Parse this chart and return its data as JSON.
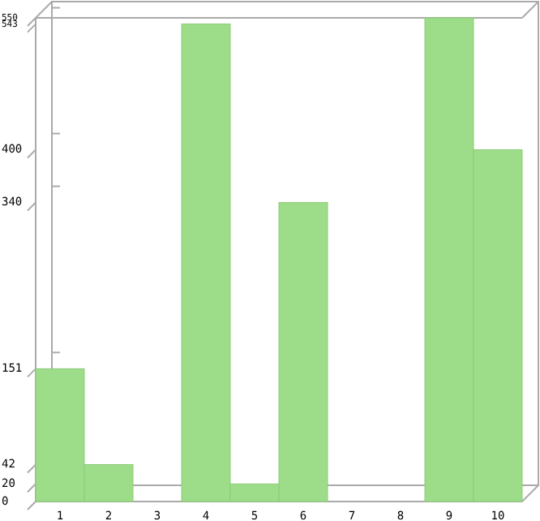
{
  "chart_data": {
    "type": "bar",
    "categories": [
      "1",
      "2",
      "3",
      "4",
      "5",
      "6",
      "7",
      "8",
      "9",
      "10"
    ],
    "values": [
      151,
      42,
      0,
      543,
      20,
      340,
      0,
      0,
      550,
      400
    ],
    "color": "#9ddc88",
    "ylim": [
      0,
      550
    ],
    "yticks": [
      0,
      20,
      42,
      151,
      340,
      400,
      543,
      550
    ],
    "grid": false
  }
}
